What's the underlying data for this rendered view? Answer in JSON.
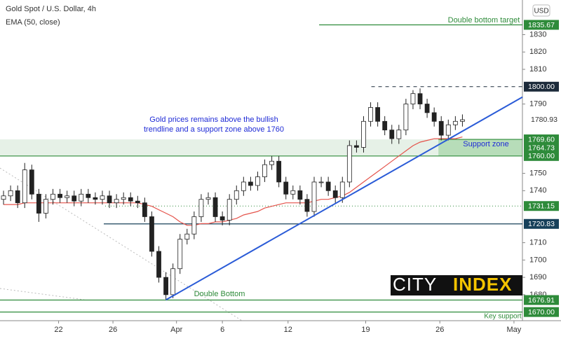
{
  "chart_data": {
    "type": "candlestick",
    "title": "Gold Spot / U.S. Dollar, 4h",
    "subtitle": "EMA (50, close)",
    "currency": "USD",
    "ylim": [
      1665,
      1850
    ],
    "yticks": [
      1680,
      1690,
      1700,
      1710,
      1740,
      1750,
      1790,
      1810,
      1820,
      1830
    ],
    "xlim": [
      -0.5,
      73.5
    ],
    "xticks": [
      {
        "value": 7.8,
        "label": "22"
      },
      {
        "value": 15.5,
        "label": "26"
      },
      {
        "value": 24.5,
        "label": "Apr"
      },
      {
        "value": 31,
        "label": "6"
      },
      {
        "value": 40.3,
        "label": "12"
      },
      {
        "value": 51.3,
        "label": "19"
      },
      {
        "value": 61.8,
        "label": "26"
      },
      {
        "value": 72.3,
        "label": "May"
      }
    ],
    "open": [
      1735,
      1737,
      1740,
      1733,
      1752,
      1738,
      1727,
      1735,
      1738,
      1736,
      1737,
      1734,
      1738,
      1736,
      1735,
      1737,
      1733,
      1735,
      1736,
      1734,
      1733,
      1725,
      1705,
      1690,
      1680,
      1695,
      1712,
      1715,
      1725,
      1735,
      1736,
      1725,
      1723,
      1735,
      1740,
      1745,
      1743,
      1748,
      1755,
      1757,
      1745,
      1738,
      1740,
      1735,
      1728,
      1745,
      1745,
      1740,
      1736,
      1745,
      1766,
      1765,
      1780,
      1788,
      1780,
      1775,
      1770,
      1775,
      1790,
      1796,
      1790,
      1785,
      1780,
      1772,
      1778,
      1780
    ],
    "high": [
      1740,
      1743,
      1743,
      1756,
      1755,
      1741,
      1738,
      1741,
      1741,
      1740,
      1740,
      1741,
      1741,
      1739,
      1740,
      1740,
      1738,
      1739,
      1739,
      1737,
      1736,
      1728,
      1708,
      1693,
      1698,
      1715,
      1718,
      1728,
      1738,
      1739,
      1739,
      1728,
      1738,
      1743,
      1748,
      1748,
      1751,
      1758,
      1760,
      1760,
      1748,
      1743,
      1743,
      1738,
      1748,
      1748,
      1748,
      1743,
      1748,
      1769,
      1769,
      1783,
      1791,
      1791,
      1783,
      1778,
      1778,
      1793,
      1798,
      1799,
      1793,
      1788,
      1783,
      1781,
      1783,
      1784
    ],
    "low": [
      1732,
      1734,
      1730,
      1730,
      1735,
      1722,
      1724,
      1732,
      1733,
      1733,
      1731,
      1731,
      1733,
      1732,
      1732,
      1730,
      1730,
      1732,
      1731,
      1730,
      1722,
      1702,
      1687,
      1677,
      1678,
      1692,
      1709,
      1712,
      1722,
      1732,
      1722,
      1720,
      1720,
      1732,
      1737,
      1740,
      1740,
      1745,
      1752,
      1742,
      1735,
      1735,
      1732,
      1725,
      1725,
      1742,
      1737,
      1733,
      1733,
      1742,
      1762,
      1762,
      1777,
      1777,
      1772,
      1767,
      1767,
      1772,
      1787,
      1787,
      1782,
      1777,
      1769,
      1769,
      1775,
      1777
    ],
    "close": [
      1737,
      1740,
      1733,
      1752,
      1738,
      1727,
      1735,
      1738,
      1736,
      1737,
      1734,
      1738,
      1736,
      1735,
      1737,
      1733,
      1735,
      1736,
      1734,
      1733,
      1725,
      1705,
      1690,
      1680,
      1695,
      1712,
      1715,
      1725,
      1735,
      1736,
      1725,
      1723,
      1735,
      1740,
      1745,
      1743,
      1748,
      1755,
      1757,
      1745,
      1738,
      1740,
      1735,
      1728,
      1745,
      1745,
      1740,
      1736,
      1745,
      1766,
      1765,
      1780,
      1788,
      1780,
      1775,
      1770,
      1775,
      1790,
      1796,
      1790,
      1785,
      1780,
      1772,
      1778,
      1780,
      1780.93
    ],
    "up_color": "#ffffff",
    "down_color": "#222222",
    "ema": {
      "color": "#e5534b",
      "values": [
        1732,
        1732,
        1732,
        1733,
        1733,
        1733,
        1733,
        1733,
        1733,
        1733,
        1733,
        1733,
        1733,
        1733,
        1733,
        1733,
        1733,
        1733,
        1733,
        1733,
        1732,
        1731,
        1729,
        1727,
        1725,
        1722,
        1720,
        1720,
        1721,
        1721,
        1722,
        1722,
        1723,
        1724,
        1726,
        1727,
        1728,
        1730,
        1731,
        1732,
        1733,
        1733,
        1733,
        1733,
        1734,
        1735,
        1735,
        1736,
        1737,
        1739,
        1742,
        1745,
        1748,
        1751,
        1754,
        1757,
        1760,
        1763,
        1766,
        1768,
        1769,
        1770,
        1770,
        1770,
        1770,
        1771
      ]
    },
    "trendline": {
      "color": "#2a5bd7",
      "x": [
        23,
        73.5
      ],
      "y": [
        1677,
        1794
      ]
    },
    "zone": {
      "low": 1760,
      "high": 1769.6,
      "start": -0.5,
      "highlight_start": 61.6
    },
    "current": {
      "value": 1780.93,
      "label": "1780.93"
    },
    "levels": [
      {
        "value": 1835.67,
        "label": "1835.67",
        "color": "#2e8b3a",
        "style": "solid",
        "start": 44.7
      },
      {
        "value": 1800,
        "label": "1800.00",
        "color": "#1c2a3a",
        "style": "dashed",
        "start": 52.1
      },
      {
        "value": 1769.6,
        "label": "1769.60",
        "color": "#2e8b3a",
        "style": "solid",
        "start": 61.6
      },
      {
        "value": 1764.73,
        "label": "1764.73",
        "color": "#2e8b3a",
        "style": "none",
        "start": 61.6
      },
      {
        "value": 1760,
        "label": "1760.00",
        "color": "#2e8b3a",
        "style": "solid",
        "start": -0.5
      },
      {
        "value": 1731.15,
        "label": "1731.15",
        "color": "#2e8b3a",
        "style": "dotted",
        "start": 14.4
      },
      {
        "value": 1720.83,
        "label": "1720.83",
        "color": "#17405a",
        "style": "solid",
        "start": 14.2
      },
      {
        "value": 1676.91,
        "label": "1676.91",
        "color": "#2e8b3a",
        "style": "solid",
        "start": -0.5
      },
      {
        "value": 1670,
        "label": "1670.00",
        "color": "#2e8b3a",
        "style": "solid",
        "start": -0.5
      }
    ],
    "annotations": [
      {
        "lines": [
          "Gold prices remains above the bullish",
          "trendline and a support zone above 1760"
        ],
        "color": "#1f2bd6"
      },
      {
        "lines": [
          "Double bottom target"
        ],
        "color": "#2e8b3a"
      },
      {
        "lines": [
          "Support zone"
        ],
        "color": "#1f2bd6"
      },
      {
        "lines": [
          "Double Bottom"
        ],
        "color": "#2e8b3a"
      },
      {
        "lines": [
          "Key support"
        ],
        "color": "#2e8b3a"
      }
    ],
    "logo": [
      "CITY",
      "INDEX"
    ]
  }
}
